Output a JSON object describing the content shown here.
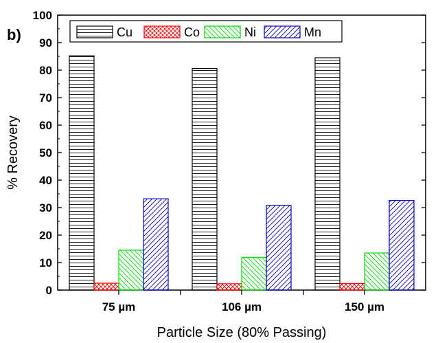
{
  "chart_data": {
    "type": "bar",
    "panel_label": "b)",
    "title": "",
    "xlabel": "Particle Size (80% Passing)",
    "ylabel": "% Recovery",
    "ylim": [
      0,
      100
    ],
    "yticks": [
      0,
      10,
      20,
      30,
      40,
      50,
      60,
      70,
      80,
      90,
      100
    ],
    "ytick_labels": [
      "0",
      "10",
      "20",
      "30",
      "40",
      "50",
      "60",
      "70",
      "80",
      "90",
      "100"
    ],
    "categories": [
      "75 µm",
      "106 µm",
      "150 µm"
    ],
    "series": [
      {
        "name": "Cu",
        "values": [
          85.2,
          80.6,
          84.5
        ],
        "color": "#000000",
        "pattern": "horizontal"
      },
      {
        "name": "Co",
        "values": [
          2.5,
          2.3,
          2.4
        ],
        "color": "#ff0000",
        "pattern": "crosshatch"
      },
      {
        "name": "Ni",
        "values": [
          14.5,
          11.9,
          13.5
        ],
        "color": "#00dd00",
        "pattern": "backslash"
      },
      {
        "name": "Mn",
        "values": [
          33.2,
          30.8,
          32.6
        ],
        "color": "#0000cc",
        "pattern": "slash"
      }
    ],
    "legend_position": "top-inside"
  }
}
